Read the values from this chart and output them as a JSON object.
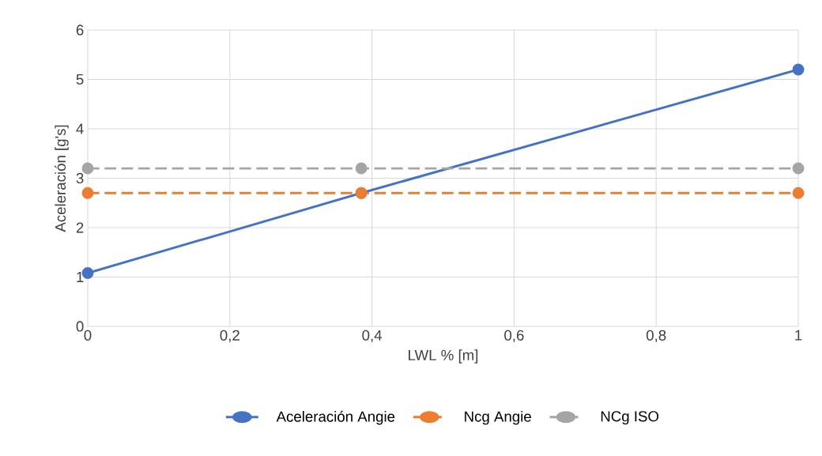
{
  "chart_data": {
    "type": "line",
    "xlabel": "LWL % [m]",
    "ylabel": "Aceleración [g's]",
    "xlim": [
      0,
      1
    ],
    "ylim": [
      0,
      6
    ],
    "xticks": [
      0,
      {
        "value": 0.2,
        "label": "0,2"
      },
      {
        "value": 0.4,
        "label": "0,4"
      },
      {
        "value": 0.6,
        "label": "0,6"
      },
      {
        "value": 0.8,
        "label": "0,8"
      },
      1
    ],
    "yticks": [
      0,
      1,
      2,
      3,
      4,
      5,
      6
    ],
    "grid": true,
    "legend": "bottom",
    "marker": "circle",
    "series": [
      {
        "name": "Aceleración Angie",
        "color": "#4472c4",
        "line_style": "solid",
        "x": [
          0,
          0.385,
          1
        ],
        "values": [
          1.08,
          2.7,
          5.2
        ]
      },
      {
        "name": "Ncg Angie",
        "color": "#ed7d31",
        "line_style": "dashed",
        "x": [
          0,
          0.385,
          1
        ],
        "values": [
          2.7,
          2.7,
          2.7
        ]
      },
      {
        "name": "NCg ISO",
        "color": "#a5a5a5",
        "line_style": "dashed",
        "x": [
          0,
          0.385,
          1
        ],
        "values": [
          3.2,
          3.2,
          3.2
        ]
      }
    ]
  }
}
